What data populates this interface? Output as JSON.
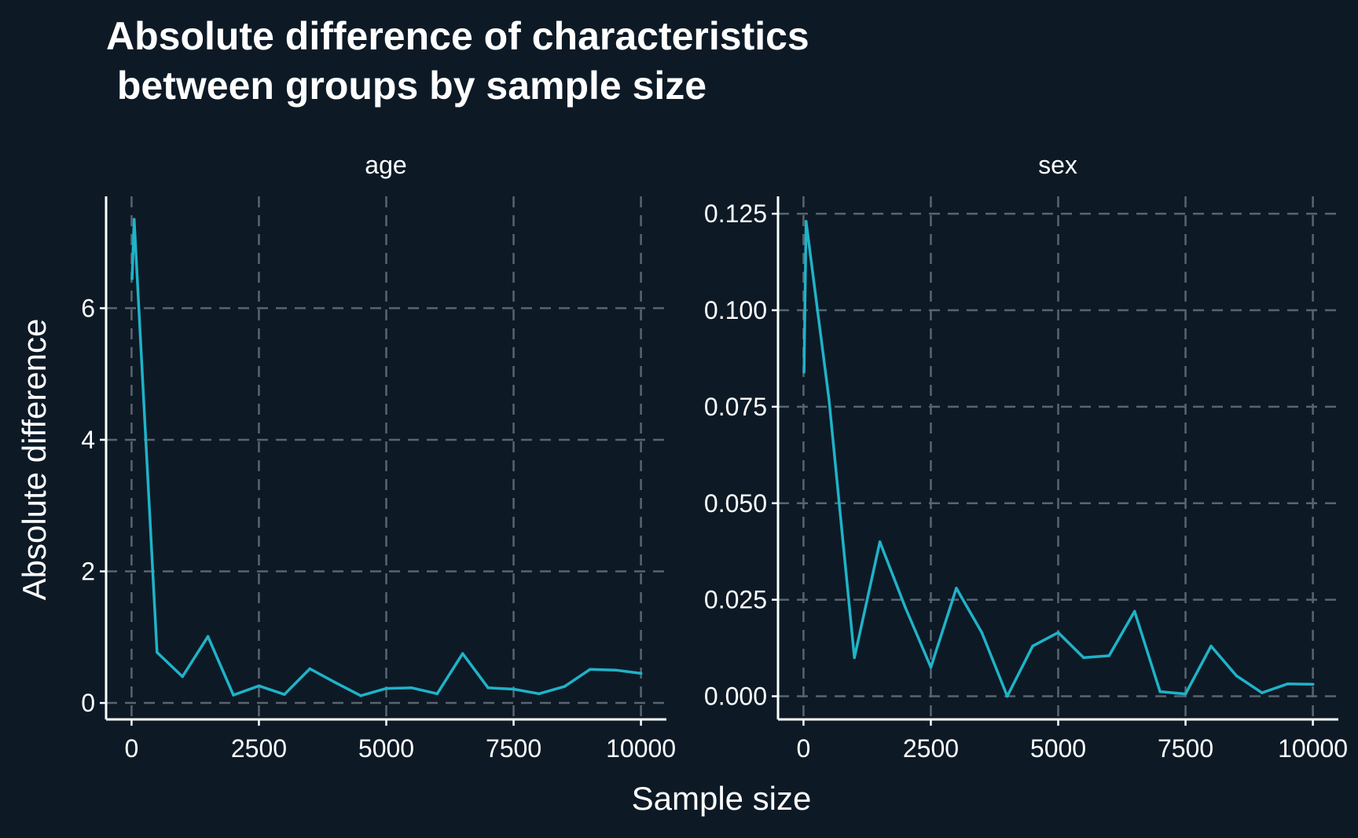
{
  "figure": {
    "title_line1": "Absolute difference of characteristics",
    "title_line2": " between groups by sample size",
    "xlabel": "Sample size",
    "ylabel": "Absolute difference",
    "background": "#0d1a26",
    "line_color": "#1fb3c8",
    "text_color": "#ffffff"
  },
  "chart_data": [
    {
      "type": "line",
      "facet": "age",
      "x": [
        10,
        50,
        500,
        1000,
        1500,
        2000,
        2500,
        3000,
        3500,
        4000,
        4500,
        5000,
        5500,
        6000,
        6500,
        7000,
        7500,
        8000,
        8500,
        9000,
        9500,
        10000
      ],
      "y": [
        6.45,
        7.35,
        0.77,
        0.4,
        1.01,
        0.12,
        0.26,
        0.13,
        0.52,
        0.31,
        0.11,
        0.22,
        0.23,
        0.14,
        0.75,
        0.23,
        0.21,
        0.14,
        0.25,
        0.51,
        0.5,
        0.45
      ],
      "xlim": [
        -500,
        10500
      ],
      "ylim": [
        -0.25,
        7.7
      ],
      "xticks": [
        0,
        2500,
        5000,
        7500,
        10000
      ],
      "xtick_labels": [
        "0",
        "2500",
        "5000",
        "7500",
        "10000"
      ],
      "yticks": [
        0,
        2,
        4,
        6
      ],
      "ytick_labels": [
        "0",
        "2",
        "4",
        "6"
      ],
      "grid": true
    },
    {
      "type": "line",
      "facet": "sex",
      "x": [
        10,
        50,
        500,
        1000,
        1500,
        2000,
        2500,
        3000,
        3500,
        4000,
        4500,
        5000,
        5500,
        6000,
        6500,
        7000,
        7500,
        8000,
        8500,
        9000,
        9500,
        10000
      ],
      "y": [
        0.084,
        0.123,
        0.077,
        0.01,
        0.04,
        0.023,
        0.0075,
        0.028,
        0.0165,
        0.0,
        0.013,
        0.0165,
        0.01,
        0.0105,
        0.022,
        0.0012,
        0.0006,
        0.013,
        0.0053,
        0.0009,
        0.0032,
        0.0031
      ],
      "xlim": [
        -500,
        10500
      ],
      "ylim": [
        -0.006,
        0.1295
      ],
      "xticks": [
        0,
        2500,
        5000,
        7500,
        10000
      ],
      "xtick_labels": [
        "0",
        "2500",
        "5000",
        "7500",
        "10000"
      ],
      "yticks": [
        0,
        0.025,
        0.05,
        0.075,
        0.1,
        0.125
      ],
      "ytick_labels": [
        "0.000",
        "0.025",
        "0.050",
        "0.075",
        "0.100",
        "0.125"
      ],
      "grid": true
    }
  ]
}
